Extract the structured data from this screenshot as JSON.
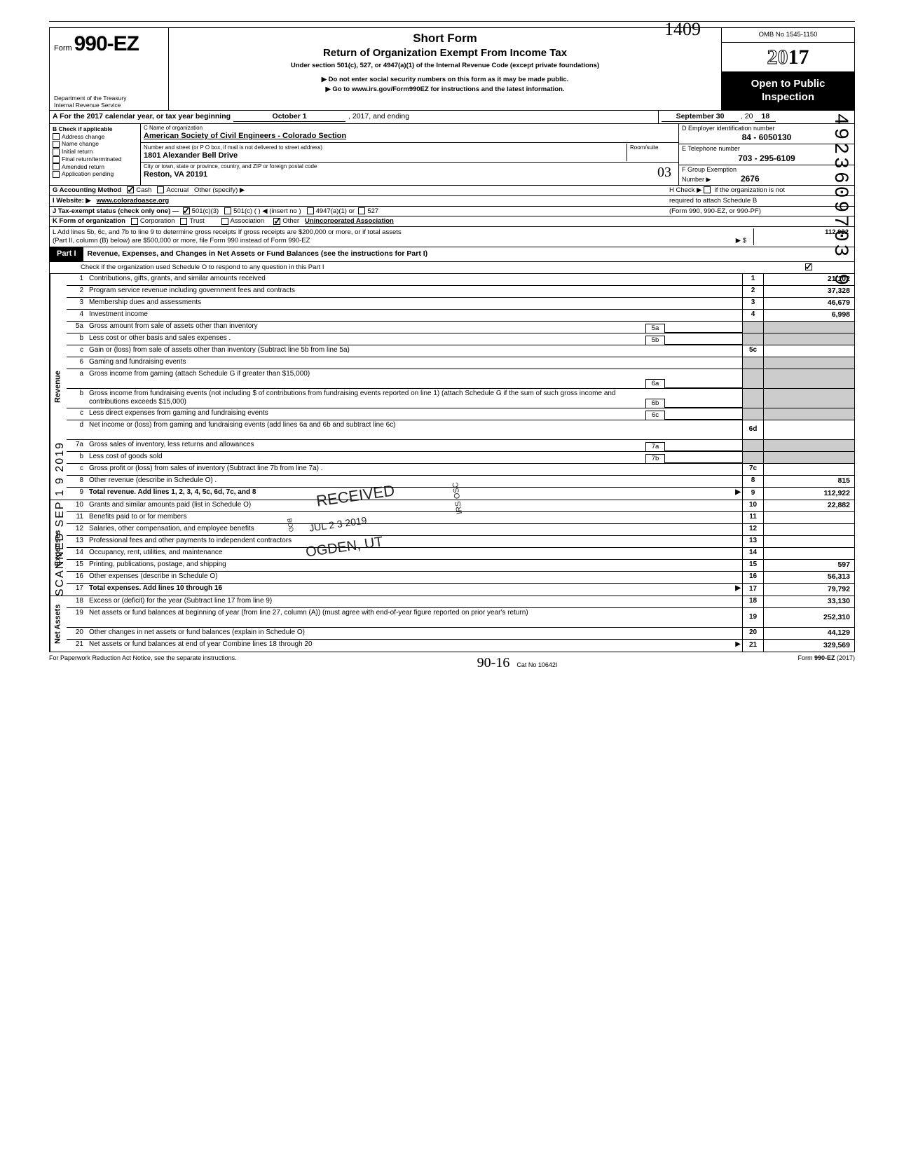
{
  "margin_right": "29492360970З 9",
  "margin_left": "SCANNED  SEP 1 9  2019",
  "handwritten_top": "1409",
  "header": {
    "form_prefix": "Form",
    "form_number": "990-EZ",
    "dept1": "Department of the Treasury",
    "dept2": "Internal Revenue Service",
    "short_form": "Short Form",
    "title": "Return of Organization Exempt From Income Tax",
    "subtitle": "Under section 501(c), 527, or 4947(a)(1) of the Internal Revenue Code (except private foundations)",
    "instr1": "▶ Do not enter social security numbers on this form as it may be made public.",
    "instr2": "▶ Go to www.irs.gov/Form990EZ for instructions and the latest information.",
    "omb": "OMB No 1545-1150",
    "year_outline": "20",
    "year_bold": "17",
    "open1": "Open to Public",
    "open2": "Inspection"
  },
  "rowA": {
    "label": "A  For the 2017 calendar year, or tax year beginning",
    "begin": "October 1",
    "mid": ", 2017, and ending",
    "end_month": "September 30",
    "end_yr_prefix": ", 20",
    "end_yr": "18"
  },
  "colB": {
    "hdr": "B  Check if applicable",
    "items": [
      "Address change",
      "Name change",
      "Initial return",
      "Final return/terminated",
      "Amended return",
      "Application pending"
    ]
  },
  "colC": {
    "c_label": "C  Name of organization",
    "c_val": "American Society of Civil Engineers - Colorado Section",
    "addr_label": "Number and street (or P O  box, if mail is not delivered to street address)",
    "room_label": "Room/suite",
    "addr_val": "1801 Alexander Bell Drive",
    "city_label": "City or town, state or province, country, and ZIP or foreign postal code",
    "city_val": "Reston, VA 20191"
  },
  "colD": {
    "d_label": "D Employer identification number",
    "d_val": "84 - 6050130",
    "e_label": "E  Telephone number",
    "e_val": "703 - 295-6109",
    "f_label": "F  Group Exemption",
    "f_label2": "Number ▶",
    "f_val": "2676"
  },
  "rowG": {
    "left_label": "G  Accounting Method",
    "cash": "Cash",
    "accrual": "Accrual",
    "other": "Other (specify) ▶",
    "right": "H  Check ▶      if the organization is not"
  },
  "rowI": {
    "left_label": "I  Website: ▶",
    "val": "www.coloradoasce.org",
    "right": "required to attach Schedule B"
  },
  "rowJ": {
    "left": "J  Tax-exempt status (check only one) —",
    "c3": "501(c)(3)",
    "c": "501(c) (         ) ◀ (insert no )",
    "a1": "4947(a)(1) or",
    "527": "527",
    "right": "(Form 990, 990-EZ, or 990-PF)"
  },
  "rowK": {
    "left": "K  Form of organization",
    "corp": "Corporation",
    "trust": "Trust",
    "assoc": "Association",
    "other": "Other",
    "other_val": "Unincorporated Association"
  },
  "rowL": {
    "text1": "L  Add lines 5b, 6c, and 7b to line 9 to determine gross receipts  If gross receipts are $200,000 or more, or if total assets",
    "text2": "(Part II, column (B) below) are $500,000 or more, file Form 990 instead of Form 990-EZ",
    "arrow": "▶   $",
    "val": "112,922"
  },
  "part1": {
    "tab": "Part I",
    "title": "Revenue, Expenses, and Changes in Net Assets or Fund Balances (see the instructions for Part I)",
    "sub": "Check if the organization used Schedule O to respond to any question in this Part I"
  },
  "lines": {
    "l1": {
      "n": "1",
      "d": "Contributions, gifts, grants, and similar amounts received",
      "bn": "1",
      "v": "21,102"
    },
    "l2": {
      "n": "2",
      "d": "Program service revenue including government fees and contracts",
      "bn": "2",
      "v": "37,328"
    },
    "l3": {
      "n": "3",
      "d": "Membership dues and assessments",
      "bn": "3",
      "v": "46,679"
    },
    "l4": {
      "n": "4",
      "d": "Investment income",
      "bn": "4",
      "v": "6,998"
    },
    "l5a": {
      "n": "5a",
      "d": "Gross amount from sale of assets other than inventory",
      "ib": "5a"
    },
    "l5b": {
      "n": "b",
      "d": "Less  cost or other basis and sales expenses .",
      "ib": "5b"
    },
    "l5c": {
      "n": "c",
      "d": "Gain or (loss) from sale of assets other than inventory (Subtract line 5b from line 5a)",
      "bn": "5c",
      "v": ""
    },
    "l6": {
      "n": "6",
      "d": "Gaming and fundraising events"
    },
    "l6a": {
      "n": "a",
      "d": "Gross income from gaming (attach Schedule G if greater than $15,000)",
      "ib": "6a"
    },
    "l6b": {
      "n": "b",
      "d": "Gross income from fundraising events (not including  $                              of contributions from fundraising events reported on line 1) (attach Schedule G if the sum of such gross income and contributions exceeds $15,000)",
      "ib": "6b"
    },
    "l6c": {
      "n": "c",
      "d": "Less  direct expenses from gaming and fundraising events",
      "ib": "6c"
    },
    "l6d": {
      "n": "d",
      "d": "Net income or (loss) from gaming and fundraising events (add lines 6a and 6b and subtract line 6c)",
      "bn": "6d",
      "v": ""
    },
    "l7a": {
      "n": "7a",
      "d": "Gross sales of inventory, less returns and allowances",
      "ib": "7a"
    },
    "l7b": {
      "n": "b",
      "d": "Less  cost of goods sold",
      "ib": "7b"
    },
    "l7c": {
      "n": "c",
      "d": "Gross profit or (loss) from sales of inventory (Subtract line 7b from line 7a)  .",
      "bn": "7c",
      "v": ""
    },
    "l8": {
      "n": "8",
      "d": "Other revenue (describe in Schedule O) .",
      "bn": "8",
      "v": "815"
    },
    "l9": {
      "n": "9",
      "d": "Total revenue. Add lines 1, 2, 3, 4, 5c, 6d, 7c, and 8",
      "bn": "9",
      "v": "112,922",
      "bold": true,
      "arrow": true
    },
    "l10": {
      "n": "10",
      "d": "Grants and similar amounts paid (list in Schedule O)",
      "bn": "10",
      "v": "22,882"
    },
    "l11": {
      "n": "11",
      "d": "Benefits paid to or for members",
      "bn": "11",
      "v": ""
    },
    "l12": {
      "n": "12",
      "d": "Salaries, other compensation, and employee benefits",
      "bn": "12",
      "v": ""
    },
    "l13": {
      "n": "13",
      "d": "Professional fees and other payments to independent contractors",
      "bn": "13",
      "v": ""
    },
    "l14": {
      "n": "14",
      "d": "Occupancy, rent, utilities, and maintenance",
      "bn": "14",
      "v": ""
    },
    "l15": {
      "n": "15",
      "d": "Printing, publications, postage, and shipping",
      "bn": "15",
      "v": "597"
    },
    "l16": {
      "n": "16",
      "d": "Other expenses (describe in Schedule O)",
      "bn": "16",
      "v": "56,313"
    },
    "l17": {
      "n": "17",
      "d": "Total expenses. Add lines 10 through 16",
      "bn": "17",
      "v": "79,792",
      "bold": true,
      "arrow": true
    },
    "l18": {
      "n": "18",
      "d": "Excess or (deficit) for the year (Subtract line 17 from line 9)",
      "bn": "18",
      "v": "33,130"
    },
    "l19": {
      "n": "19",
      "d": "Net assets or fund balances at beginning of year (from line 27, column (A)) (must agree with end-of-year figure reported on prior year's return)",
      "bn": "19",
      "v": "252,310"
    },
    "l20": {
      "n": "20",
      "d": "Other changes in net assets or fund balances (explain in Schedule O)",
      "bn": "20",
      "v": "44,129"
    },
    "l21": {
      "n": "21",
      "d": "Net assets or fund balances at end of year  Combine lines 18 through 20",
      "bn": "21",
      "v": "329,569",
      "arrow": true
    }
  },
  "sections": {
    "revenue": "Revenue",
    "expenses": "Expenses",
    "netassets": "Net Assets"
  },
  "stamps": {
    "received": "RECEIVED",
    "date": "JUL 2 3 2019",
    "ogden": "OGDEN, UT",
    "irs": "IRS·OSC",
    "bod": "BOD"
  },
  "footer": {
    "left": "For Paperwork Reduction Act Notice, see the separate instructions.",
    "hand": "90-16",
    "mid": "Cat  No  10642I",
    "right": "Form 990-EZ (2017)"
  },
  "hand_03": "03"
}
